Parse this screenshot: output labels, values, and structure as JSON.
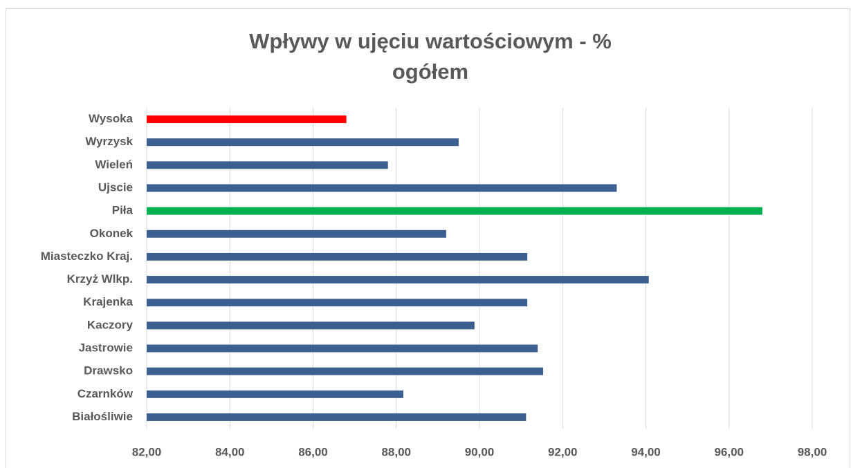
{
  "chart_data": {
    "type": "barh",
    "title": [
      "Wpływy w ujęciu wartościowym - %",
      "ogółem"
    ],
    "categories": [
      "Wysoka",
      "Wyrzysk",
      "Wieleń",
      "Ujscie",
      "Piła",
      "Okonek",
      "Miasteczko Kraj.",
      "Krzyż Wlkp.",
      "Krajenka",
      "Kaczory",
      "Jastrowie",
      "Drawsko",
      "Czarnków",
      "Białośliwie"
    ],
    "values": [
      86.8,
      89.5,
      87.8,
      93.3,
      96.8,
      89.2,
      91.15,
      94.07,
      91.15,
      89.88,
      91.4,
      91.53,
      88.17,
      91.12
    ],
    "colors": [
      "#ff0000",
      "#3b5f8f",
      "#3b5f8f",
      "#3b5f8f",
      "#00b050",
      "#3b5f8f",
      "#3b5f8f",
      "#3b5f8f",
      "#3b5f8f",
      "#3b5f8f",
      "#3b5f8f",
      "#3b5f8f",
      "#3b5f8f",
      "#3b5f8f"
    ],
    "xlim": [
      82,
      98
    ],
    "xticks": [
      {
        "value": 82,
        "label": "82,00"
      },
      {
        "value": 84,
        "label": "84,00"
      },
      {
        "value": 86,
        "label": "86,00"
      },
      {
        "value": 88,
        "label": "88,00"
      },
      {
        "value": 90,
        "label": "90,00"
      },
      {
        "value": 92,
        "label": "92,00"
      },
      {
        "value": 94,
        "label": "94,00"
      },
      {
        "value": 96,
        "label": "96,00"
      },
      {
        "value": 98,
        "label": "98,00"
      }
    ],
    "grid": true
  }
}
